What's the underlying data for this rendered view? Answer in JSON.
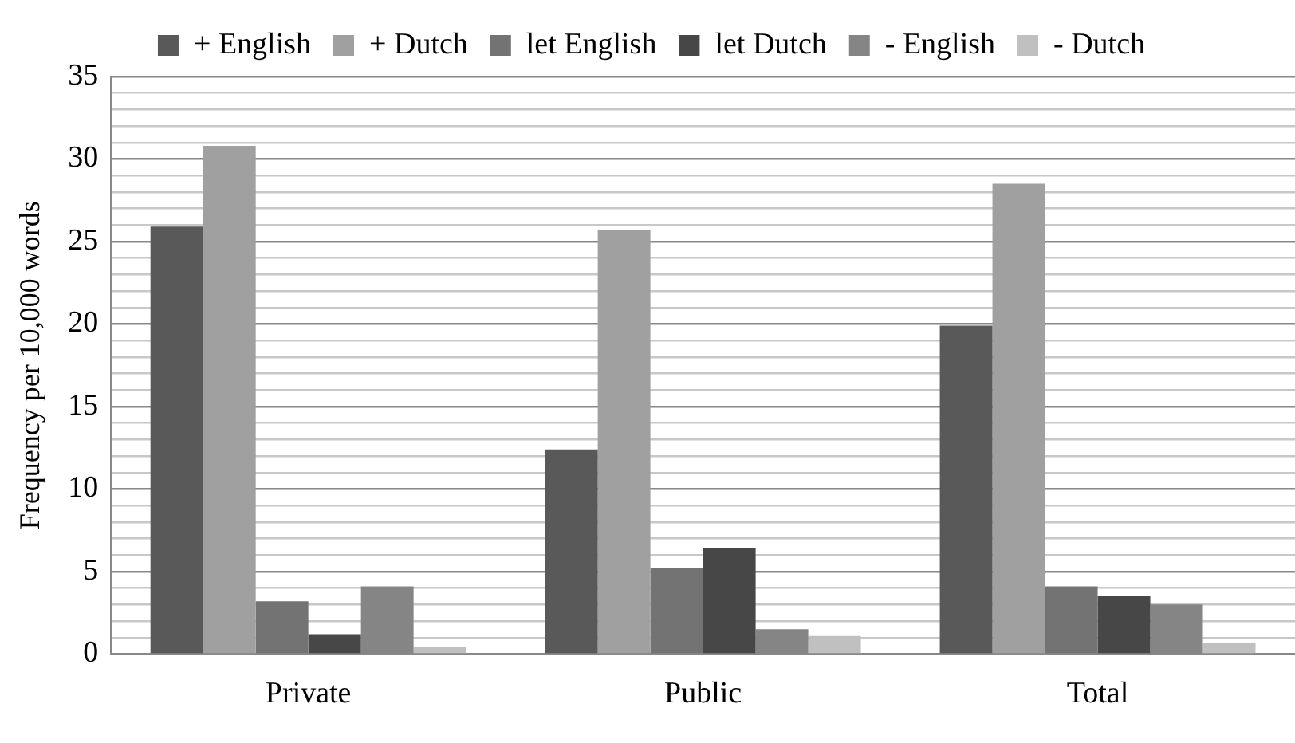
{
  "chart_data": {
    "type": "bar",
    "ylabel": "Frequency per 10,000 words",
    "categories": [
      "Private",
      "Public",
      "Total"
    ],
    "series": [
      {
        "name": "+ English",
        "color": "#595959",
        "values": [
          25.9,
          12.4,
          19.9
        ]
      },
      {
        "name": "+ Dutch",
        "color": "#a0a0a0",
        "values": [
          30.8,
          25.7,
          28.5
        ]
      },
      {
        "name": "let English",
        "color": "#737373",
        "values": [
          3.2,
          5.2,
          4.1
        ]
      },
      {
        "name": "let Dutch",
        "color": "#474747",
        "values": [
          1.2,
          6.4,
          3.5
        ]
      },
      {
        "name": "- English",
        "color": "#858585",
        "values": [
          4.1,
          1.5,
          3.0
        ]
      },
      {
        "name": "- Dutch",
        "color": "#c0c0c0",
        "values": [
          0.4,
          1.1,
          0.7
        ]
      }
    ],
    "ylim": [
      0,
      35
    ],
    "yticks": [
      0,
      {
        "value": 1,
        "label": null
      },
      {
        "value": 2,
        "label": null
      },
      {
        "value": 3,
        "label": null
      },
      {
        "value": 4,
        "label": null
      },
      5,
      {
        "value": 6,
        "label": null
      },
      {
        "value": 7,
        "label": null
      },
      {
        "value": 8,
        "label": null
      },
      {
        "value": 9,
        "label": null
      },
      10,
      {
        "value": 11,
        "label": null
      },
      {
        "value": 12,
        "label": null
      },
      {
        "value": 13,
        "label": null
      },
      {
        "value": 14,
        "label": null
      },
      15,
      {
        "value": 16,
        "label": null
      },
      {
        "value": 17,
        "label": null
      },
      {
        "value": 18,
        "label": null
      },
      {
        "value": 19,
        "label": null
      },
      20,
      {
        "value": 21,
        "label": null
      },
      {
        "value": 22,
        "label": null
      },
      {
        "value": 23,
        "label": null
      },
      {
        "value": 24,
        "label": null
      },
      25,
      {
        "value": 26,
        "label": null
      },
      {
        "value": 27,
        "label": null
      },
      {
        "value": 28,
        "label": null
      },
      {
        "value": 29,
        "label": null
      },
      30,
      {
        "value": 31,
        "label": null
      },
      {
        "value": 32,
        "label": null
      },
      {
        "value": 33,
        "label": null
      },
      {
        "value": 34,
        "label": null
      },
      35
    ],
    "grid": "y",
    "legend": "top"
  }
}
